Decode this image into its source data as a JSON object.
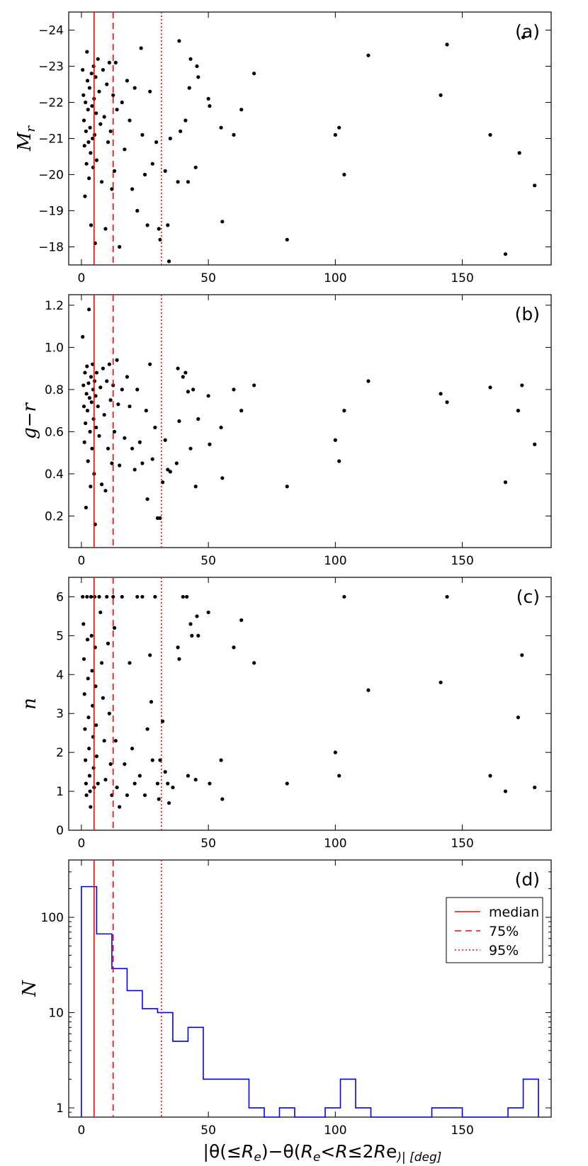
{
  "vlines": {
    "median": 5.0,
    "p75": 12.5,
    "p95": 31.5,
    "color": "#ff0000"
  },
  "xaxis": {
    "label": "|θ(≤R_e)−θ(R_e<R≤2R_e)| [deg]",
    "label_parts": [
      "|θ(≤",
      "R",
      "e",
      ")−θ(",
      "R",
      "e",
      "<",
      "R",
      "≤2",
      "R",
      "e",
      ")| [deg]"
    ],
    "ticks": [
      0,
      50,
      100,
      150
    ],
    "tick_labels": [
      "0",
      "50",
      "100",
      "150"
    ],
    "range": [
      -5,
      185
    ]
  },
  "chart_data": [
    {
      "type": "scatter",
      "panel_label": "(a)",
      "ylabel": "M_r",
      "ylabel_main": "M",
      "ylabel_sub": "r",
      "ylim": [
        -17.5,
        -24.5
      ],
      "yticks": [
        -24,
        -23,
        -22,
        -21,
        -20,
        -19,
        -18
      ],
      "ytick_labels": [
        "−24",
        "−23",
        "−22",
        "−21",
        "−20",
        "−19",
        "−18"
      ],
      "points": [
        [
          0.5,
          -22.9
        ],
        [
          0.8,
          -22.2
        ],
        [
          1.0,
          -21.5
        ],
        [
          1.2,
          -20.8
        ],
        [
          1.4,
          -19.4
        ],
        [
          1.6,
          -22.0
        ],
        [
          1.8,
          -21.2
        ],
        [
          2.0,
          -20.3
        ],
        [
          2.2,
          -23.4
        ],
        [
          2.4,
          -22.6
        ],
        [
          2.6,
          -21.8
        ],
        [
          2.8,
          -20.9
        ],
        [
          3.0,
          -19.9
        ],
        [
          3.2,
          -22.4
        ],
        [
          3.4,
          -21.3
        ],
        [
          3.6,
          -20.6
        ],
        [
          3.8,
          -18.6
        ],
        [
          4.0,
          -22.8
        ],
        [
          4.2,
          -21.9
        ],
        [
          4.4,
          -21.0
        ],
        [
          4.6,
          -20.2
        ],
        [
          4.8,
          -23.0
        ],
        [
          5.0,
          -22.1
        ],
        [
          5.2,
          -21.1
        ],
        [
          5.4,
          -18.1
        ],
        [
          5.6,
          -22.7
        ],
        [
          5.8,
          -21.7
        ],
        [
          6.0,
          -20.4
        ],
        [
          6.5,
          -23.2
        ],
        [
          7.0,
          -22.3
        ],
        [
          7.5,
          -21.4
        ],
        [
          8.0,
          -19.8
        ],
        [
          8.5,
          -22.9
        ],
        [
          9.0,
          -21.6
        ],
        [
          9.5,
          -18.5
        ],
        [
          10.0,
          -22.5
        ],
        [
          10.5,
          -20.9
        ],
        [
          11.0,
          -23.1
        ],
        [
          11.5,
          -21.2
        ],
        [
          12.0,
          -19.6
        ],
        [
          12.5,
          -22.2
        ],
        [
          13.0,
          -20.1
        ],
        [
          13.5,
          -23.1
        ],
        [
          14.0,
          -21.8
        ],
        [
          15.0,
          -18.0
        ],
        [
          16.0,
          -22.0
        ],
        [
          17.0,
          -20.7
        ],
        [
          18.0,
          -22.6
        ],
        [
          19.0,
          -21.5
        ],
        [
          20.0,
          -19.6
        ],
        [
          21.0,
          -22.4
        ],
        [
          22.0,
          -19.0
        ],
        [
          23.5,
          -23.5
        ],
        [
          24.0,
          -21.1
        ],
        [
          25.0,
          -20.0
        ],
        [
          26.0,
          -18.6
        ],
        [
          27.0,
          -22.3
        ],
        [
          28.0,
          -20.3
        ],
        [
          29.5,
          -20.9
        ],
        [
          30.5,
          -18.5
        ],
        [
          31.0,
          -18.2
        ],
        [
          33.0,
          -20.1
        ],
        [
          34.0,
          -18.6
        ],
        [
          34.5,
          -17.6
        ],
        [
          35.0,
          -21.0
        ],
        [
          38.0,
          -19.8
        ],
        [
          38.5,
          -23.7
        ],
        [
          39.0,
          -21.2
        ],
        [
          41.0,
          -21.5
        ],
        [
          42.0,
          -19.8
        ],
        [
          42.5,
          -22.4
        ],
        [
          43.0,
          -23.2
        ],
        [
          45.0,
          -20.2
        ],
        [
          45.5,
          -23.0
        ],
        [
          46.0,
          -22.7
        ],
        [
          50.0,
          -22.1
        ],
        [
          50.5,
          -21.9
        ],
        [
          55.0,
          -21.3
        ],
        [
          55.5,
          -18.7
        ],
        [
          60.0,
          -21.1
        ],
        [
          63.0,
          -21.8
        ],
        [
          68.0,
          -22.8
        ],
        [
          81.0,
          -18.2
        ],
        [
          100.0,
          -21.1
        ],
        [
          101.5,
          -21.3
        ],
        [
          103.5,
          -20.0
        ],
        [
          113.0,
          -23.3
        ],
        [
          141.5,
          -22.2
        ],
        [
          144.0,
          -23.6
        ],
        [
          161.0,
          -21.1
        ],
        [
          167.0,
          -17.8
        ],
        [
          172.5,
          -20.6
        ],
        [
          174.0,
          -23.8
        ],
        [
          178.5,
          -19.7
        ]
      ]
    },
    {
      "type": "scatter",
      "panel_label": "(b)",
      "ylabel": "g−r",
      "ylim": [
        0.05,
        1.25
      ],
      "yticks": [
        0.2,
        0.4,
        0.6,
        0.8,
        1.0,
        1.2
      ],
      "ytick_labels": [
        "0.2",
        "0.4",
        "0.6",
        "0.8",
        "1.0",
        "1.2"
      ],
      "points": [
        [
          0.5,
          1.05
        ],
        [
          0.8,
          0.82
        ],
        [
          1.0,
          0.72
        ],
        [
          1.2,
          0.55
        ],
        [
          1.4,
          0.88
        ],
        [
          1.6,
          0.64
        ],
        [
          1.8,
          0.24
        ],
        [
          2.0,
          0.78
        ],
        [
          2.2,
          0.91
        ],
        [
          2.4,
          0.7
        ],
        [
          2.6,
          0.46
        ],
        [
          2.8,
          0.83
        ],
        [
          3.0,
          1.18
        ],
        [
          3.2,
          0.76
        ],
        [
          3.4,
          0.6
        ],
        [
          3.6,
          0.34
        ],
        [
          3.8,
          0.86
        ],
        [
          4.0,
          0.74
        ],
        [
          4.2,
          0.52
        ],
        [
          4.4,
          0.92
        ],
        [
          4.6,
          0.8
        ],
        [
          4.8,
          0.66
        ],
        [
          5.0,
          0.4
        ],
        [
          5.2,
          0.84
        ],
        [
          5.4,
          0.16
        ],
        [
          5.6,
          0.77
        ],
        [
          5.8,
          0.62
        ],
        [
          6.0,
          0.88
        ],
        [
          6.5,
          0.72
        ],
        [
          7.0,
          0.58
        ],
        [
          7.5,
          0.81
        ],
        [
          8.0,
          0.35
        ],
        [
          8.5,
          0.9
        ],
        [
          9.0,
          0.68
        ],
        [
          9.5,
          0.32
        ],
        [
          10.0,
          0.84
        ],
        [
          10.5,
          0.52
        ],
        [
          11.0,
          0.92
        ],
        [
          11.5,
          0.75
        ],
        [
          12.0,
          0.45
        ],
        [
          12.5,
          0.82
        ],
        [
          13.0,
          0.6
        ],
        [
          14.0,
          0.94
        ],
        [
          14.5,
          0.73
        ],
        [
          15.0,
          0.44
        ],
        [
          16.0,
          0.8
        ],
        [
          17.0,
          0.57
        ],
        [
          18.0,
          0.86
        ],
        [
          19.0,
          0.72
        ],
        [
          20.0,
          0.52
        ],
        [
          21.0,
          0.42
        ],
        [
          22.0,
          0.8
        ],
        [
          23.0,
          0.55
        ],
        [
          24.0,
          0.45
        ],
        [
          25.5,
          0.7
        ],
        [
          26.0,
          0.28
        ],
        [
          27.0,
          0.92
        ],
        [
          28.0,
          0.47
        ],
        [
          29.0,
          0.62
        ],
        [
          30.0,
          0.19
        ],
        [
          31.0,
          0.19
        ],
        [
          32.0,
          0.36
        ],
        [
          33.0,
          0.56
        ],
        [
          34.0,
          0.42
        ],
        [
          35.0,
          0.41
        ],
        [
          37.5,
          0.45
        ],
        [
          38.0,
          0.9
        ],
        [
          38.5,
          0.65
        ],
        [
          40.0,
          0.86
        ],
        [
          41.0,
          0.88
        ],
        [
          42.0,
          0.79
        ],
        [
          43.0,
          0.52
        ],
        [
          44.0,
          0.8
        ],
        [
          45.0,
          0.34
        ],
        [
          46.0,
          0.66
        ],
        [
          50.0,
          0.77
        ],
        [
          50.5,
          0.54
        ],
        [
          55.0,
          0.62
        ],
        [
          55.5,
          0.38
        ],
        [
          60.0,
          0.8
        ],
        [
          63.0,
          0.7
        ],
        [
          68.0,
          0.82
        ],
        [
          81.0,
          0.34
        ],
        [
          100.0,
          0.56
        ],
        [
          101.5,
          0.46
        ],
        [
          103.5,
          0.7
        ],
        [
          113.0,
          0.84
        ],
        [
          141.5,
          0.78
        ],
        [
          144.0,
          0.74
        ],
        [
          161.0,
          0.81
        ],
        [
          167.0,
          0.36
        ],
        [
          172.0,
          0.7
        ],
        [
          173.5,
          0.82
        ],
        [
          178.5,
          0.54
        ]
      ]
    },
    {
      "type": "scatter",
      "panel_label": "(c)",
      "ylabel": "n",
      "ylim": [
        0,
        6.5
      ],
      "yticks": [
        0,
        1,
        2,
        3,
        4,
        5,
        6
      ],
      "ytick_labels": [
        "0",
        "1",
        "2",
        "3",
        "4",
        "5",
        "6"
      ],
      "points": [
        [
          0.5,
          6.0
        ],
        [
          0.8,
          5.3
        ],
        [
          1.0,
          4.4
        ],
        [
          1.2,
          3.5
        ],
        [
          1.4,
          2.6
        ],
        [
          1.6,
          1.8
        ],
        [
          1.8,
          1.2
        ],
        [
          2.0,
          0.9
        ],
        [
          2.2,
          6.0
        ],
        [
          2.4,
          4.9
        ],
        [
          2.6,
          3.9
        ],
        [
          2.8,
          2.9
        ],
        [
          3.0,
          2.1
        ],
        [
          3.2,
          1.4
        ],
        [
          3.4,
          1.0
        ],
        [
          3.6,
          0.6
        ],
        [
          3.8,
          6.0
        ],
        [
          4.0,
          5.0
        ],
        [
          4.2,
          4.1
        ],
        [
          4.4,
          3.2
        ],
        [
          4.6,
          2.4
        ],
        [
          4.8,
          1.6
        ],
        [
          5.0,
          1.1
        ],
        [
          5.2,
          6.0
        ],
        [
          5.4,
          4.7
        ],
        [
          5.6,
          3.7
        ],
        [
          5.8,
          2.7
        ],
        [
          6.0,
          1.9
        ],
        [
          6.5,
          1.2
        ],
        [
          7.0,
          6.0
        ],
        [
          7.5,
          5.6
        ],
        [
          8.0,
          4.3
        ],
        [
          8.5,
          3.4
        ],
        [
          9.0,
          2.3
        ],
        [
          9.5,
          1.3
        ],
        [
          10.0,
          6.0
        ],
        [
          10.5,
          4.8
        ],
        [
          11.0,
          3.0
        ],
        [
          11.5,
          1.7
        ],
        [
          12.0,
          0.9
        ],
        [
          12.5,
          6.0
        ],
        [
          13.0,
          5.2
        ],
        [
          13.5,
          2.3
        ],
        [
          14.0,
          1.1
        ],
        [
          15.0,
          0.6
        ],
        [
          16.0,
          6.0
        ],
        [
          17.0,
          1.7
        ],
        [
          18.0,
          0.9
        ],
        [
          19.0,
          4.3
        ],
        [
          20.0,
          2.1
        ],
        [
          21.0,
          1.2
        ],
        [
          22.0,
          6.0
        ],
        [
          23.0,
          1.4
        ],
        [
          24.0,
          6.0
        ],
        [
          25.0,
          0.9
        ],
        [
          26.0,
          2.6
        ],
        [
          27.0,
          4.5
        ],
        [
          27.5,
          3.3
        ],
        [
          28.0,
          1.8
        ],
        [
          29.0,
          6.0
        ],
        [
          30.0,
          1.2
        ],
        [
          30.5,
          0.8
        ],
        [
          31.0,
          1.8
        ],
        [
          32.0,
          2.8
        ],
        [
          33.0,
          1.5
        ],
        [
          34.0,
          1.2
        ],
        [
          34.5,
          0.7
        ],
        [
          36.0,
          1.1
        ],
        [
          38.0,
          4.7
        ],
        [
          38.5,
          4.4
        ],
        [
          40.0,
          6.0
        ],
        [
          41.5,
          6.0
        ],
        [
          42.0,
          1.4
        ],
        [
          43.0,
          5.3
        ],
        [
          43.5,
          5.0
        ],
        [
          45.0,
          1.3
        ],
        [
          45.5,
          5.5
        ],
        [
          46.0,
          5.0
        ],
        [
          50.0,
          5.6
        ],
        [
          50.5,
          1.2
        ],
        [
          55.0,
          1.8
        ],
        [
          55.5,
          0.8
        ],
        [
          60.0,
          4.7
        ],
        [
          63.0,
          5.4
        ],
        [
          68.0,
          4.3
        ],
        [
          81.0,
          1.2
        ],
        [
          100.0,
          2.0
        ],
        [
          101.5,
          1.4
        ],
        [
          103.5,
          6.0
        ],
        [
          113.0,
          3.6
        ],
        [
          141.5,
          3.8
        ],
        [
          144.0,
          6.0
        ],
        [
          161.0,
          1.4
        ],
        [
          167.0,
          1.0
        ],
        [
          172.0,
          2.9
        ],
        [
          173.5,
          4.5
        ],
        [
          178.5,
          1.1
        ]
      ]
    },
    {
      "type": "histogram",
      "panel_label": "(d)",
      "ylabel": "N",
      "yscale": "log",
      "ylim": [
        0.8,
        400
      ],
      "yticks": [
        1,
        10,
        100
      ],
      "ytick_labels": [
        "1",
        "10",
        "100"
      ],
      "bin_width": 6,
      "bin_edges_start": 0,
      "counts": [
        210,
        67,
        29,
        17,
        11,
        10,
        5,
        7,
        2,
        2,
        2,
        1,
        0,
        1,
        0,
        0,
        1,
        2,
        1,
        0,
        0,
        0,
        0,
        1,
        1,
        0,
        0,
        0,
        1,
        2
      ],
      "line_color": "#0000ff",
      "legend": {
        "position": "right",
        "entries": [
          {
            "label": "median",
            "style": "solid"
          },
          {
            "label": "75%",
            "style": "dashed"
          },
          {
            "label": "95%",
            "style": "dotted"
          }
        ]
      }
    }
  ]
}
